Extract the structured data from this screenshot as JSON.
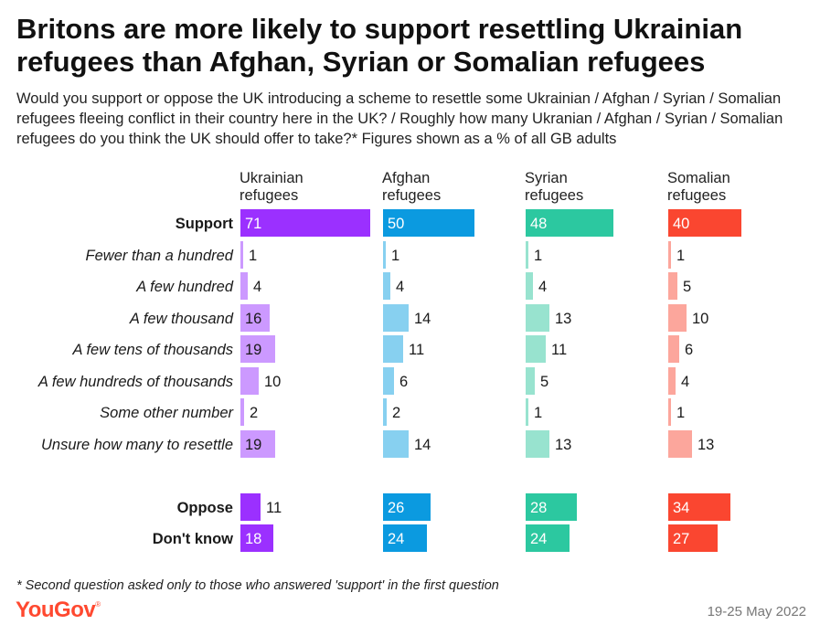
{
  "title": "Britons are more likely to support resettling Ukrainian refugees than Afghan, Syrian or Somalian refugees",
  "subtitle": "Would you support or oppose the UK introducing a scheme to resettle some Ukrainian / Afghan / Syrian / Somalian refugees fleeing conflict in their country here in the UK? / Roughly how many Ukranian / Afghan / Syrian / Somalian refugees do you think the UK should offer to take?* Figures shown as a % of all GB adults",
  "footnote": "* Second question asked only to those who answered 'support' in the first question",
  "brand": "YouGov",
  "brand_mark": "®",
  "date": "19-25 May 2022",
  "chart_data": {
    "type": "bar",
    "orientation": "horizontal",
    "units": "% of all GB adults",
    "categories": [
      "Support",
      "Fewer than a hundred",
      "A few hundred",
      "A few thousand",
      "A few tens of thousands",
      "A few hundreds of thousands",
      "Some other number",
      "Unsure how many to resettle",
      "Oppose",
      "Don't know"
    ],
    "category_styles": [
      "bold",
      "italic",
      "italic",
      "italic",
      "italic",
      "italic",
      "italic",
      "italic",
      "bold",
      "bold"
    ],
    "series": [
      {
        "name": "Ukrainian refugees",
        "label_lines": [
          "Ukrainian",
          "refugees"
        ],
        "values": [
          71,
          1,
          4,
          16,
          19,
          10,
          2,
          19,
          11,
          18
        ],
        "color": "#9b30ff",
        "light_color": "#cc99ff"
      },
      {
        "name": "Afghan refugees",
        "label_lines": [
          "Afghan",
          "refugees"
        ],
        "values": [
          50,
          1,
          4,
          14,
          11,
          6,
          2,
          14,
          26,
          24
        ],
        "color": "#0b9ae0",
        "light_color": "#87d0f0"
      },
      {
        "name": "Syrian refugees",
        "label_lines": [
          "Syrian",
          "refugees"
        ],
        "values": [
          48,
          1,
          4,
          13,
          11,
          5,
          1,
          13,
          28,
          24
        ],
        "color": "#2cc8a0",
        "light_color": "#98e3cf"
      },
      {
        "name": "Somalian refugees",
        "label_lines": [
          "Somalian",
          "refugees"
        ],
        "values": [
          40,
          1,
          5,
          10,
          6,
          4,
          1,
          13,
          34,
          27
        ],
        "color": "#fa4630",
        "light_color": "#fca69c"
      }
    ]
  }
}
